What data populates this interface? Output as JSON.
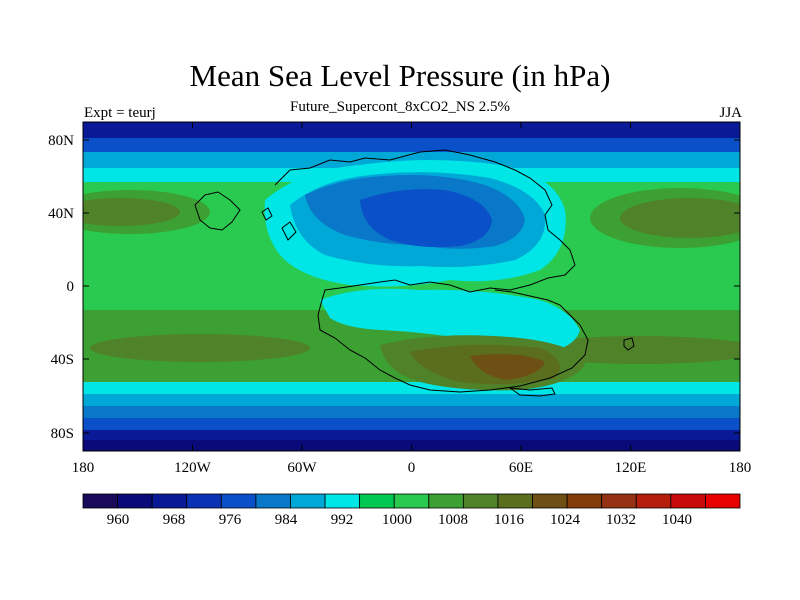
{
  "header": {
    "title": "Mean Sea Level Pressure (in hPa)",
    "subtitle": "Future_Supercont_8xCO2_NS 2.5%",
    "left_label": "Expt = teurj",
    "right_label": "JJA"
  },
  "map": {
    "projection": "cylindrical equidistant",
    "lon_range": [
      -180,
      180
    ],
    "lat_range": [
      -90,
      90
    ],
    "x_ticks": [
      "180",
      "120W",
      "60W",
      "0",
      "60E",
      "120E",
      "180"
    ],
    "y_ticks": [
      "80N",
      "40N",
      "0",
      "40S",
      "80S"
    ]
  },
  "colorbar": {
    "labels": [
      "960",
      "968",
      "976",
      "984",
      "992",
      "1000",
      "1008",
      "1016",
      "1024",
      "1032",
      "1040"
    ],
    "colors": [
      "#1a0a5a",
      "#0a0a78",
      "#0a1996",
      "#0a32b4",
      "#0a50c8",
      "#0a78c8",
      "#00a8d8",
      "#00e6e6",
      "#00c850",
      "#2aca50",
      "#3ca032",
      "#50822a",
      "#5a6e1e",
      "#6e5014",
      "#823c0a",
      "#963214",
      "#b41e0a",
      "#c80a0a",
      "#e60000"
    ]
  }
}
